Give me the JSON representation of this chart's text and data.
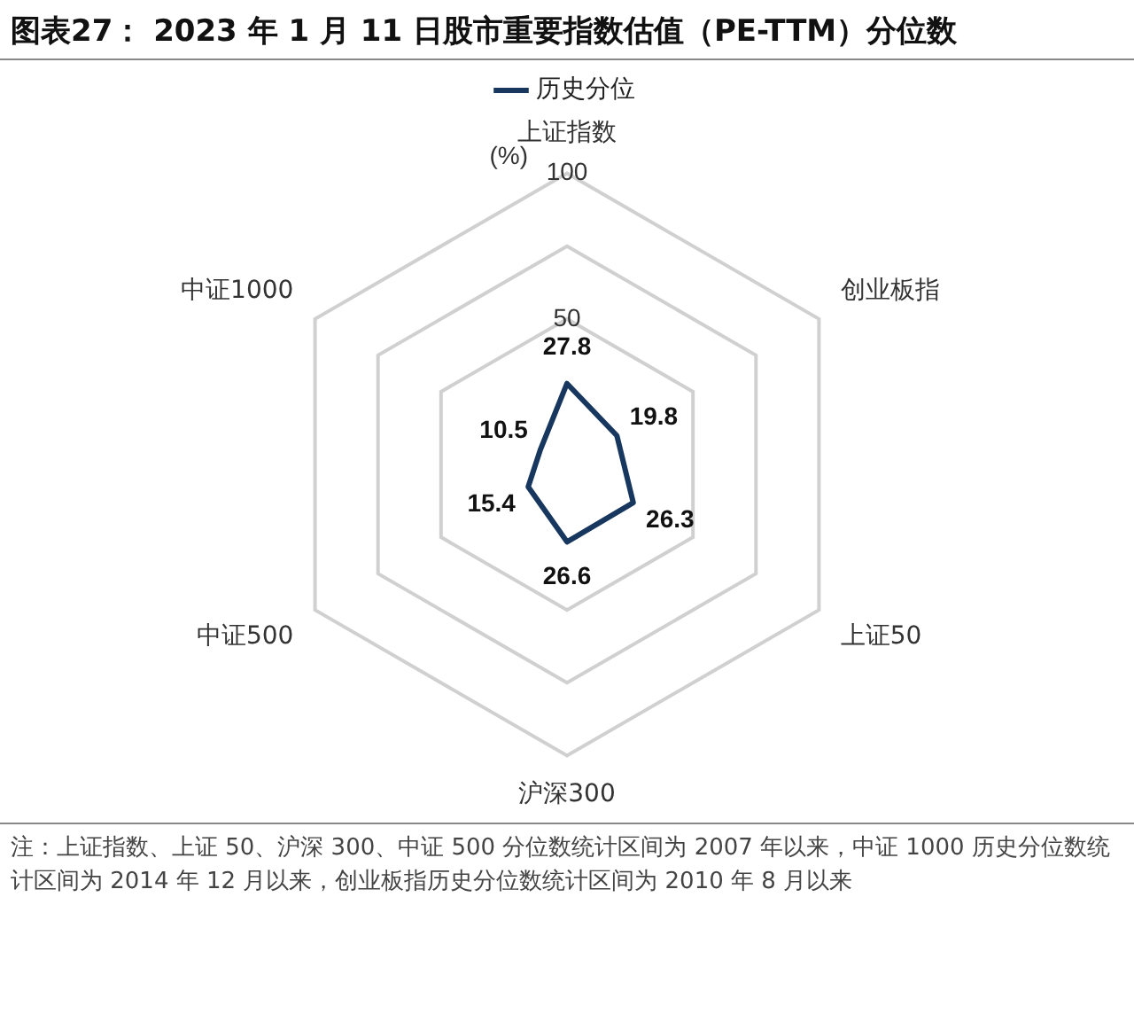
{
  "chart_data": {
    "type": "radar",
    "title": "图表27： 2023 年 1 月 11 日股市重要指数估值（PE-TTM）分位数",
    "ylabel": "(%)",
    "categories": [
      "上证指数",
      "创业板指",
      "上证50",
      "沪深300",
      "中证500",
      "中证1000"
    ],
    "series": [
      {
        "name": "历史分位",
        "color": "#17375e",
        "values": [
          27.8,
          19.8,
          26.3,
          26.6,
          15.4,
          10.5
        ]
      }
    ],
    "ylim": [
      0,
      100
    ],
    "yticks": [
      50,
      100
    ],
    "grid": true,
    "legend": "top",
    "marker": "none",
    "line_style": "solid",
    "data_labels": true,
    "annotations": [
      "注：上证指数、上证 50、沪深 300、中证 500 分位数统计区间为 2007 年以来，中证 1000 历史分位数统计区间为 2014 年 12 月以来，创业板指历史分位数统计区间为 2010 年 8 月以来"
    ]
  }
}
